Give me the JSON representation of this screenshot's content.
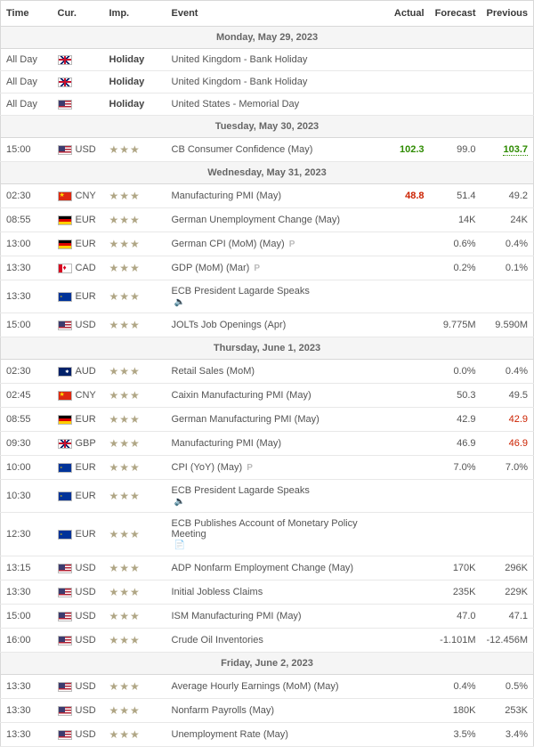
{
  "headers": {
    "time": "Time",
    "cur": "Cur.",
    "imp": "Imp.",
    "event": "Event",
    "actual": "Actual",
    "forecast": "Forecast",
    "previous": "Previous"
  },
  "colors": {
    "green": "#2e8b00",
    "red": "#cc2200",
    "border": "#d8d8d8",
    "date_bg": "#f5f5f5",
    "text": "#545454"
  },
  "groups": [
    {
      "date": "Monday, May 29, 2023",
      "rows": [
        {
          "time": "All Day",
          "flag": "gb",
          "cur": "",
          "imp": 0,
          "impBold": true,
          "impText": "Holiday",
          "event": "United Kingdom - Bank Holiday",
          "actual": "",
          "forecast": "",
          "previous": ""
        },
        {
          "time": "All Day",
          "flag": "gb",
          "cur": "",
          "imp": 0,
          "impBold": true,
          "impText": "Holiday",
          "event": "United Kingdom - Bank Holiday",
          "actual": "",
          "forecast": "",
          "previous": ""
        },
        {
          "time": "All Day",
          "flag": "us",
          "cur": "",
          "imp": 0,
          "impBold": true,
          "impText": "Holiday",
          "event": "United States - Memorial Day",
          "actual": "",
          "forecast": "",
          "previous": ""
        }
      ]
    },
    {
      "date": "Tuesday, May 30, 2023",
      "rows": [
        {
          "time": "15:00",
          "flag": "us",
          "cur": "USD",
          "imp": 3,
          "event": "CB Consumer Confidence (May)",
          "actual": "102.3",
          "actualClass": "val-green",
          "forecast": "99.0",
          "previous": "103.7",
          "prevClass": "val-green-dotted"
        }
      ]
    },
    {
      "date": "Wednesday, May 31, 2023",
      "rows": [
        {
          "time": "02:30",
          "flag": "cn",
          "cur": "CNY",
          "imp": 3,
          "event": "Manufacturing PMI (May)",
          "actual": "48.8",
          "actualClass": "val-red",
          "forecast": "51.4",
          "previous": "49.2"
        },
        {
          "time": "08:55",
          "flag": "de",
          "cur": "EUR",
          "imp": 3,
          "event": "German Unemployment Change (May)",
          "actual": "",
          "forecast": "14K",
          "previous": "24K"
        },
        {
          "time": "13:00",
          "flag": "de",
          "cur": "EUR",
          "imp": 3,
          "event": "German CPI (MoM) (May)",
          "suffix": "p",
          "actual": "",
          "forecast": "0.6%",
          "previous": "0.4%"
        },
        {
          "time": "13:30",
          "flag": "ca",
          "cur": "CAD",
          "imp": 3,
          "event": "GDP (MoM) (Mar)",
          "suffix": "p",
          "actual": "",
          "forecast": "0.2%",
          "previous": "0.1%"
        },
        {
          "time": "13:30",
          "flag": "eu",
          "cur": "EUR",
          "imp": 3,
          "event": "ECB President Lagarde Speaks",
          "icon": "speaker",
          "actual": "",
          "forecast": "",
          "previous": ""
        },
        {
          "time": "15:00",
          "flag": "us",
          "cur": "USD",
          "imp": 3,
          "event": "JOLTs Job Openings (Apr)",
          "actual": "",
          "forecast": "9.775M",
          "previous": "9.590M"
        }
      ]
    },
    {
      "date": "Thursday, June 1, 2023",
      "rows": [
        {
          "time": "02:30",
          "flag": "au",
          "cur": "AUD",
          "imp": 3,
          "event": "Retail Sales (MoM)",
          "actual": "",
          "forecast": "0.0%",
          "previous": "0.4%"
        },
        {
          "time": "02:45",
          "flag": "cn",
          "cur": "CNY",
          "imp": 3,
          "event": "Caixin Manufacturing PMI (May)",
          "actual": "",
          "forecast": "50.3",
          "previous": "49.5"
        },
        {
          "time": "08:55",
          "flag": "de",
          "cur": "EUR",
          "imp": 3,
          "event": "German Manufacturing PMI (May)",
          "actual": "",
          "forecast": "42.9",
          "previous": "42.9",
          "prevClass": "val-red-prev"
        },
        {
          "time": "09:30",
          "flag": "gb",
          "cur": "GBP",
          "imp": 3,
          "event": "Manufacturing PMI (May)",
          "actual": "",
          "forecast": "46.9",
          "previous": "46.9",
          "prevClass": "val-red-prev"
        },
        {
          "time": "10:00",
          "flag": "eu",
          "cur": "EUR",
          "imp": 3,
          "event": "CPI (YoY) (May)",
          "suffix": "p",
          "actual": "",
          "forecast": "7.0%",
          "previous": "7.0%"
        },
        {
          "time": "10:30",
          "flag": "eu",
          "cur": "EUR",
          "imp": 3,
          "event": "ECB President Lagarde Speaks",
          "icon": "speaker",
          "actual": "",
          "forecast": "",
          "previous": ""
        },
        {
          "time": "12:30",
          "flag": "eu",
          "cur": "EUR",
          "imp": 3,
          "event": "ECB Publishes Account of Monetary Policy Meeting",
          "icon": "doc",
          "actual": "",
          "forecast": "",
          "previous": ""
        },
        {
          "time": "13:15",
          "flag": "us",
          "cur": "USD",
          "imp": 3,
          "event": "ADP Nonfarm Employment Change (May)",
          "actual": "",
          "forecast": "170K",
          "previous": "296K"
        },
        {
          "time": "13:30",
          "flag": "us",
          "cur": "USD",
          "imp": 3,
          "event": "Initial Jobless Claims",
          "actual": "",
          "forecast": "235K",
          "previous": "229K"
        },
        {
          "time": "15:00",
          "flag": "us",
          "cur": "USD",
          "imp": 3,
          "event": "ISM Manufacturing PMI (May)",
          "actual": "",
          "forecast": "47.0",
          "previous": "47.1"
        },
        {
          "time": "16:00",
          "flag": "us",
          "cur": "USD",
          "imp": 3,
          "event": "Crude Oil Inventories",
          "actual": "",
          "forecast": "-1.101M",
          "previous": "-12.456M"
        }
      ]
    },
    {
      "date": "Friday, June 2, 2023",
      "rows": [
        {
          "time": "13:30",
          "flag": "us",
          "cur": "USD",
          "imp": 3,
          "event": "Average Hourly Earnings (MoM) (May)",
          "actual": "",
          "forecast": "0.4%",
          "previous": "0.5%"
        },
        {
          "time": "13:30",
          "flag": "us",
          "cur": "USD",
          "imp": 3,
          "event": "Nonfarm Payrolls (May)",
          "actual": "",
          "forecast": "180K",
          "previous": "253K"
        },
        {
          "time": "13:30",
          "flag": "us",
          "cur": "USD",
          "imp": 3,
          "event": "Unemployment Rate (May)",
          "actual": "",
          "forecast": "3.5%",
          "previous": "3.4%"
        }
      ]
    }
  ]
}
